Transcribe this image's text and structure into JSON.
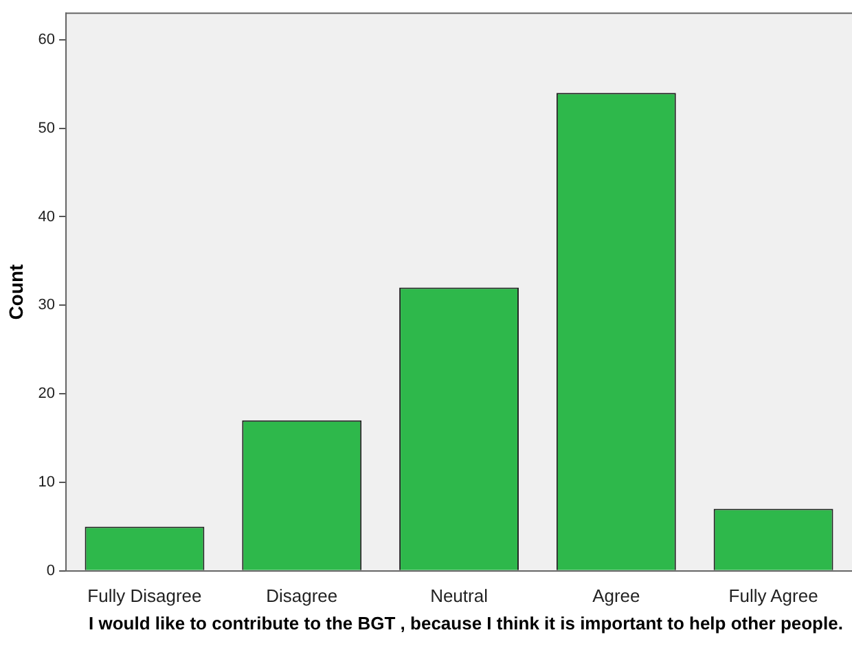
{
  "chart_data": {
    "type": "bar",
    "xlabel": "I would like to contribute to the BGT , because I think it is important to help other people.",
    "ylabel": "Count",
    "categories": [
      "Fully Disagree",
      "Disagree",
      "Neutral",
      "Agree",
      "Fully Agree"
    ],
    "values": [
      5,
      17,
      32,
      54,
      7
    ],
    "color": "#2eb84b",
    "ylim": [
      0,
      63
    ],
    "yticks": [
      0,
      10,
      20,
      30,
      40,
      50,
      60
    ],
    "grid": false,
    "legend": false
  }
}
